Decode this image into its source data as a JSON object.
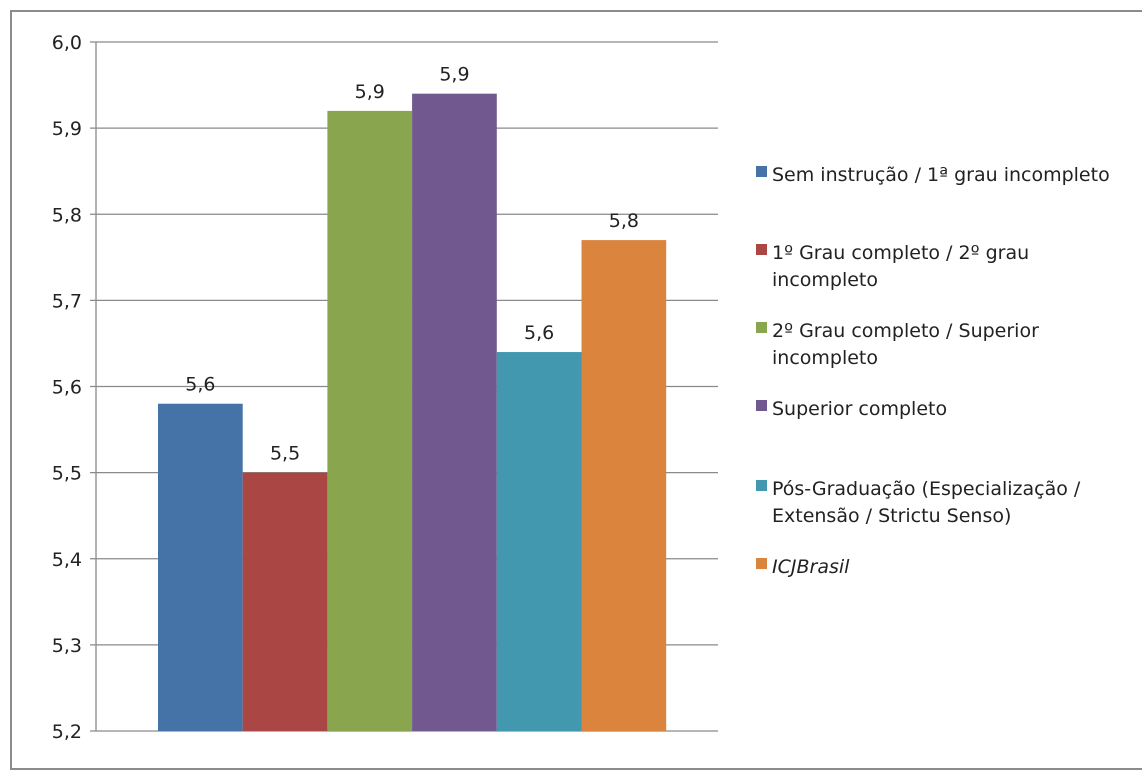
{
  "chart_data": {
    "type": "bar",
    "ylim": [
      5.2,
      6.0
    ],
    "yticks": [
      "5,2",
      "5,3",
      "5,4",
      "5,5",
      "5,6",
      "5,7",
      "5,8",
      "5,9",
      "6,0"
    ],
    "grid": true,
    "legend_position": "right",
    "series": [
      {
        "name": "Sem instrução / 1ª grau incompleto",
        "legend_lines": [
          "Sem instrução / 1ª grau incompleto"
        ],
        "value": 5.58,
        "label": "5,6",
        "color": "#4572a7",
        "italic": false
      },
      {
        "name": "1º Grau completo / 2º grau incompleto",
        "legend_lines": [
          "1º Grau completo / 2º grau",
          "incompleto"
        ],
        "value": 5.5,
        "label": "5,5",
        "color": "#aa4643",
        "italic": false
      },
      {
        "name": "2º Grau completo / Superior incompleto",
        "legend_lines": [
          "2º Grau completo / Superior",
          "incompleto"
        ],
        "value": 5.92,
        "label": "5,9",
        "color": "#89a54e",
        "italic": false
      },
      {
        "name": "Superior completo",
        "legend_lines": [
          "Superior completo"
        ],
        "value": 5.94,
        "label": "5,9",
        "color": "#71588f",
        "italic": false
      },
      {
        "name": "Pós-Graduação (Especialização / Extensão / Strictu Senso)",
        "legend_lines": [
          "Pós-Graduação (Especialização /",
          "Extensão / Strictu Senso)"
        ],
        "value": 5.64,
        "label": "5,6",
        "color": "#4198af",
        "italic": false
      },
      {
        "name": "ICJBrasil",
        "legend_lines": [
          "ICJBrasil"
        ],
        "value": 5.77,
        "label": "5,8",
        "color": "#db843d",
        "italic": true
      }
    ]
  }
}
